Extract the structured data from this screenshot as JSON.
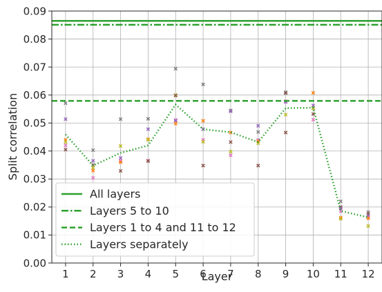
{
  "chart_data": {
    "type": "line",
    "xlabel": "Layer",
    "ylabel": "Split correlation",
    "xlim": [
      0.5,
      12.5
    ],
    "ylim": [
      0.0,
      0.09
    ],
    "x_ticks": [
      1,
      2,
      3,
      4,
      5,
      6,
      7,
      8,
      9,
      10,
      11,
      12
    ],
    "y_ticks": [
      "0.00",
      "0.01",
      "0.02",
      "0.03",
      "0.04",
      "0.05",
      "0.06",
      "0.07",
      "0.08",
      "0.09"
    ],
    "grid": true,
    "legend_position": "lower-left",
    "color": "#2ca02c",
    "series": [
      {
        "name": "All layers",
        "style": "solid",
        "y": 0.0865
      },
      {
        "name": "Layers 5 to 10",
        "style": "dashdot",
        "y": 0.0851
      },
      {
        "name": "Layers 1 to 4 and 11 to 12",
        "style": "dashed",
        "y": 0.0579
      },
      {
        "name": "Layers separately",
        "style": "dotted",
        "x": [
          1,
          2,
          3,
          4,
          5,
          6,
          7,
          8,
          9,
          10,
          11,
          12
        ],
        "values": [
          0.0459,
          0.0348,
          0.0393,
          0.042,
          0.0566,
          0.0478,
          0.0467,
          0.0432,
          0.0553,
          0.0555,
          0.0186,
          0.0163
        ]
      }
    ],
    "scatter_points": [
      {
        "x": 1,
        "y": 0.0571,
        "color": "#7f7f7f"
      },
      {
        "x": 1,
        "y": 0.0514,
        "color": "#9467bd"
      },
      {
        "x": 1,
        "y": 0.044,
        "color": "#ff7f0e"
      },
      {
        "x": 1,
        "y": 0.0432,
        "color": "#bcbd22"
      },
      {
        "x": 1,
        "y": 0.042,
        "color": "#e377c2"
      },
      {
        "x": 1,
        "y": 0.0405,
        "color": "#8c564b"
      },
      {
        "x": 2,
        "y": 0.0403,
        "color": "#7f7f7f"
      },
      {
        "x": 2,
        "y": 0.0365,
        "color": "#9467bd"
      },
      {
        "x": 2,
        "y": 0.035,
        "color": "#8c564b"
      },
      {
        "x": 2,
        "y": 0.034,
        "color": "#bcbd22"
      },
      {
        "x": 2,
        "y": 0.033,
        "color": "#ff7f0e"
      },
      {
        "x": 2,
        "y": 0.0304,
        "color": "#e377c2"
      },
      {
        "x": 3,
        "y": 0.0514,
        "color": "#7f7f7f"
      },
      {
        "x": 3,
        "y": 0.0418,
        "color": "#bcbd22"
      },
      {
        "x": 3,
        "y": 0.0375,
        "color": "#9467bd"
      },
      {
        "x": 3,
        "y": 0.0365,
        "color": "#e377c2"
      },
      {
        "x": 3,
        "y": 0.036,
        "color": "#ff7f0e"
      },
      {
        "x": 3,
        "y": 0.0329,
        "color": "#8c564b"
      },
      {
        "x": 4,
        "y": 0.0515,
        "color": "#7f7f7f"
      },
      {
        "x": 4,
        "y": 0.0478,
        "color": "#9467bd"
      },
      {
        "x": 4,
        "y": 0.0442,
        "color": "#ff7f0e"
      },
      {
        "x": 4,
        "y": 0.044,
        "color": "#bcbd22"
      },
      {
        "x": 4,
        "y": 0.0366,
        "color": "#e377c2"
      },
      {
        "x": 4,
        "y": 0.0364,
        "color": "#8c564b"
      },
      {
        "x": 5,
        "y": 0.0694,
        "color": "#7f7f7f"
      },
      {
        "x": 5,
        "y": 0.06,
        "color": "#bcbd22"
      },
      {
        "x": 5,
        "y": 0.0598,
        "color": "#8c564b"
      },
      {
        "x": 5,
        "y": 0.0511,
        "color": "#e377c2"
      },
      {
        "x": 5,
        "y": 0.0508,
        "color": "#9467bd"
      },
      {
        "x": 5,
        "y": 0.0498,
        "color": "#ff7f0e"
      },
      {
        "x": 6,
        "y": 0.0638,
        "color": "#7f7f7f"
      },
      {
        "x": 6,
        "y": 0.0508,
        "color": "#ff7f0e"
      },
      {
        "x": 6,
        "y": 0.0478,
        "color": "#9467bd"
      },
      {
        "x": 6,
        "y": 0.044,
        "color": "#e377c2"
      },
      {
        "x": 6,
        "y": 0.0433,
        "color": "#bcbd22"
      },
      {
        "x": 6,
        "y": 0.0348,
        "color": "#8c564b"
      },
      {
        "x": 7,
        "y": 0.0545,
        "color": "#7f7f7f"
      },
      {
        "x": 7,
        "y": 0.0542,
        "color": "#9467bd"
      },
      {
        "x": 7,
        "y": 0.0466,
        "color": "#ff7f0e"
      },
      {
        "x": 7,
        "y": 0.0432,
        "color": "#8c564b"
      },
      {
        "x": 7,
        "y": 0.0398,
        "color": "#bcbd22"
      },
      {
        "x": 7,
        "y": 0.0385,
        "color": "#e377c2"
      },
      {
        "x": 8,
        "y": 0.049,
        "color": "#9467bd"
      },
      {
        "x": 8,
        "y": 0.0468,
        "color": "#7f7f7f"
      },
      {
        "x": 8,
        "y": 0.044,
        "color": "#e377c2"
      },
      {
        "x": 8,
        "y": 0.0435,
        "color": "#ff7f0e"
      },
      {
        "x": 8,
        "y": 0.0428,
        "color": "#bcbd22"
      },
      {
        "x": 8,
        "y": 0.0348,
        "color": "#8c564b"
      },
      {
        "x": 9,
        "y": 0.061,
        "color": "#7f7f7f"
      },
      {
        "x": 9,
        "y": 0.0607,
        "color": "#8c564b"
      },
      {
        "x": 9,
        "y": 0.0578,
        "color": "#e377c2"
      },
      {
        "x": 9,
        "y": 0.0575,
        "color": "#9467bd"
      },
      {
        "x": 9,
        "y": 0.053,
        "color": "#bcbd22"
      },
      {
        "x": 9,
        "y": 0.0466,
        "color": "#8c564b"
      },
      {
        "x": 10,
        "y": 0.0608,
        "color": "#ff7f0e"
      },
      {
        "x": 10,
        "y": 0.0563,
        "color": "#9467bd"
      },
      {
        "x": 10,
        "y": 0.0553,
        "color": "#7f7f7f"
      },
      {
        "x": 10,
        "y": 0.0552,
        "color": "#bcbd22"
      },
      {
        "x": 10,
        "y": 0.0532,
        "color": "#8c564b"
      },
      {
        "x": 10,
        "y": 0.0512,
        "color": "#e377c2"
      },
      {
        "x": 11,
        "y": 0.022,
        "color": "#7f7f7f"
      },
      {
        "x": 11,
        "y": 0.02,
        "color": "#8c564b"
      },
      {
        "x": 11,
        "y": 0.0195,
        "color": "#9467bd"
      },
      {
        "x": 11,
        "y": 0.0185,
        "color": "#e377c2"
      },
      {
        "x": 11,
        "y": 0.0162,
        "color": "#ff7f0e"
      },
      {
        "x": 11,
        "y": 0.0158,
        "color": "#bcbd22"
      },
      {
        "x": 12,
        "y": 0.0182,
        "color": "#7f7f7f"
      },
      {
        "x": 12,
        "y": 0.0175,
        "color": "#8c564b"
      },
      {
        "x": 12,
        "y": 0.0168,
        "color": "#9467bd"
      },
      {
        "x": 12,
        "y": 0.0162,
        "color": "#e377c2"
      },
      {
        "x": 12,
        "y": 0.016,
        "color": "#ff7f0e"
      },
      {
        "x": 12,
        "y": 0.0132,
        "color": "#bcbd22"
      }
    ]
  }
}
